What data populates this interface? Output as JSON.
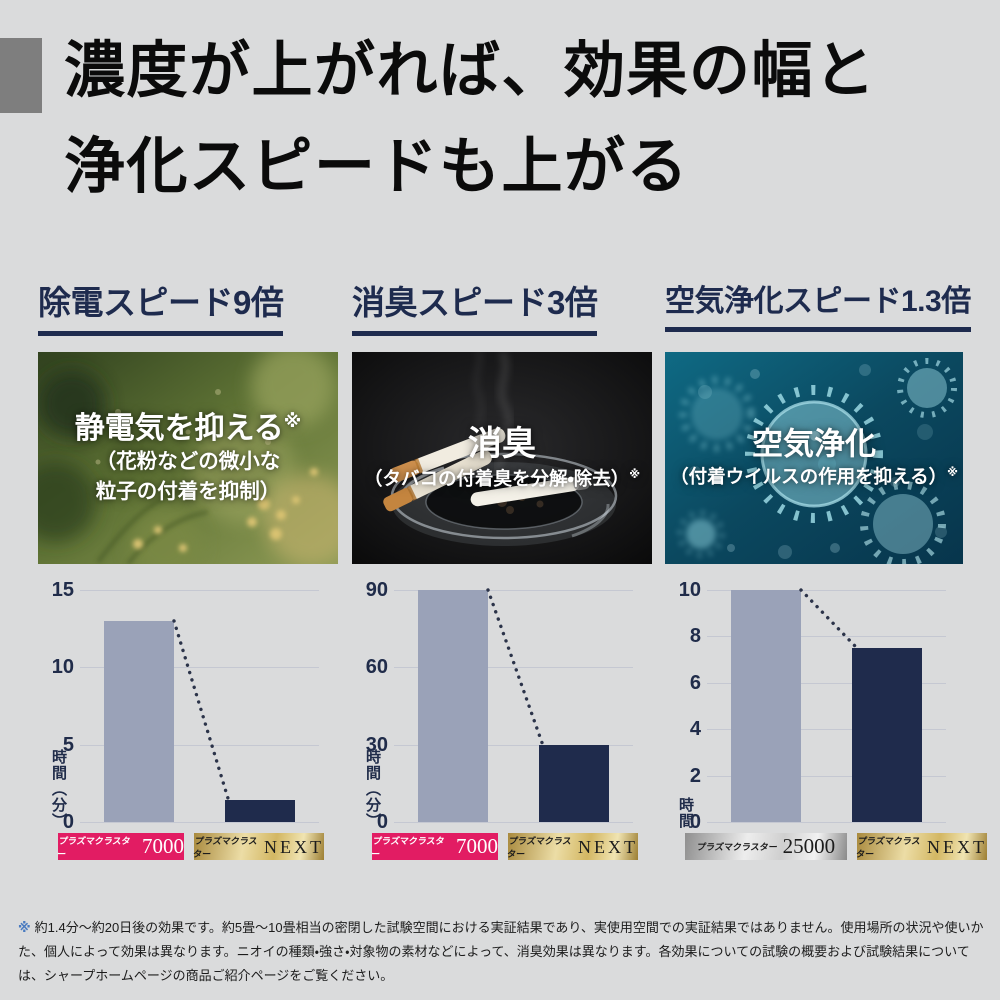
{
  "page": {
    "title_line1": "濃度が上がれば、効果の幅と",
    "title_line2": "浄化スピードも上がる",
    "background": "#dadbdc",
    "accent_navy": "#1e2b4e"
  },
  "columns": [
    {
      "header": "除電スピード9倍",
      "image_heading": "静電気を抑える",
      "image_heading_note": "※",
      "image_sub1": "（花粉などの微小な",
      "image_sub2": "粒子の付着を抑制）",
      "image_sub_note": "",
      "badge1": {
        "brand": "プラズマクラスター",
        "model": "7000"
      },
      "badge2": {
        "brand": "プラズマクラスター",
        "model": "NEXT"
      }
    },
    {
      "header": "消臭スピード3倍",
      "image_heading": "消臭",
      "image_heading_note": "",
      "image_sub1": "（タバコの付着臭を分解・除去）",
      "image_sub2": "",
      "image_sub_note": "※",
      "badge1": {
        "brand": "プラズマクラスター",
        "model": "7000"
      },
      "badge2": {
        "brand": "プラズマクラスター",
        "model": "NEXT"
      }
    },
    {
      "header": "空気浄化スピード1.3倍",
      "image_heading": "空気浄化",
      "image_heading_note": "",
      "image_sub1": "（付着ウイルスの作用を抑える）",
      "image_sub2": "",
      "image_sub_note": "※",
      "badge1": {
        "brand": "プラズマクラスター",
        "model": "25000"
      },
      "badge2": {
        "brand": "プラズマクラスター",
        "model": "NEXT"
      }
    }
  ],
  "chart_data": [
    {
      "type": "bar",
      "title": "除電スピード9倍",
      "categories": [
        "プラズマクラスター7000",
        "プラズマクラスターNEXT"
      ],
      "values": [
        13,
        1.4
      ],
      "ylabel": "時間（分）",
      "yticks": [
        0,
        5,
        10,
        15
      ],
      "ylim": [
        0,
        15
      ],
      "grid": true,
      "bar_colors": [
        "#9aa2b8",
        "#1f2b4c"
      ],
      "annotation": "dotted-decline-line"
    },
    {
      "type": "bar",
      "title": "消臭スピード3倍",
      "categories": [
        "プラズマクラスター7000",
        "プラズマクラスターNEXT"
      ],
      "values": [
        90,
        30
      ],
      "ylabel": "時間（分）",
      "yticks": [
        0,
        30,
        60,
        90
      ],
      "ylim": [
        0,
        90
      ],
      "grid": true,
      "bar_colors": [
        "#9aa2b8",
        "#1f2b4c"
      ],
      "annotation": "dotted-decline-line"
    },
    {
      "type": "bar",
      "title": "空気浄化スピード1.3倍",
      "categories": [
        "プラズマクラスター25000",
        "プラズマクラスターNEXT"
      ],
      "values": [
        10,
        7.5
      ],
      "ylabel": "時間",
      "yticks": [
        0,
        2,
        4,
        6,
        8,
        10
      ],
      "ylim": [
        0,
        10
      ],
      "grid": true,
      "bar_colors": [
        "#9aa2b8",
        "#1f2b4c"
      ],
      "annotation": "dotted-decline-line"
    }
  ],
  "footnote": {
    "marker": "※",
    "text": "約1.4分〜約20日後の効果です。約5畳〜10畳相当の密閉した試験空間における実証結果であり、実使用空間での実証結果ではありません。使用場所の状況や使いかた、個人によって効果は異なります。ニオイの種類・強さ・対象物の素材などによって、消臭効果は異なります。各効果についての試験の概要および試験結果については、シャープホームページの商品ご紹介ページをご覧ください。"
  }
}
